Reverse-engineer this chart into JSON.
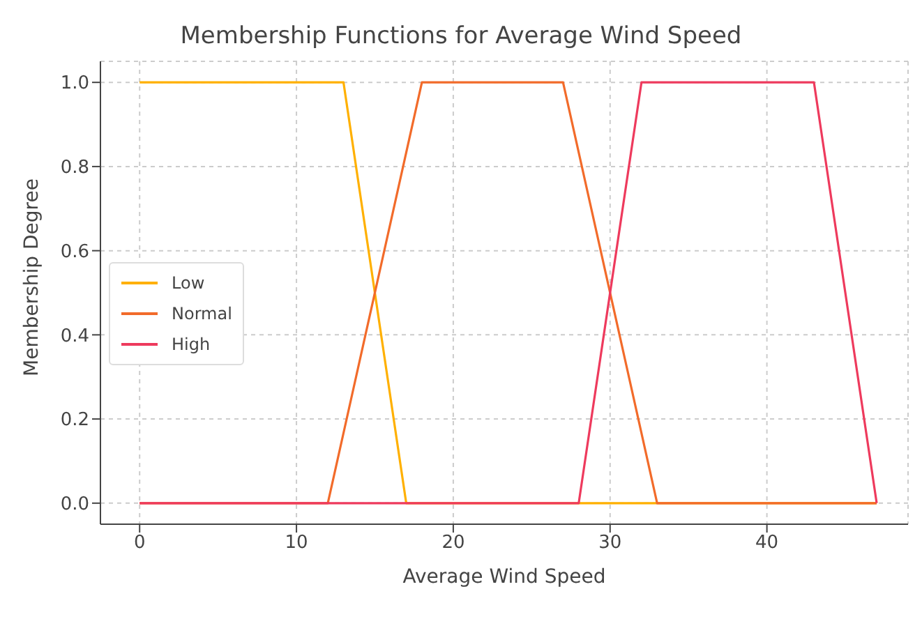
{
  "chart_data": {
    "type": "line",
    "title": "Membership Functions for Average Wind Speed",
    "xlabel": "Average Wind Speed",
    "ylabel": "Membership Degree",
    "series": [
      {
        "name": "Low",
        "color": "#ffb000",
        "x": [
          0,
          13,
          17,
          47
        ],
        "values": [
          1,
          1,
          0,
          0
        ]
      },
      {
        "name": "Normal",
        "color": "#f26b2a",
        "x": [
          0,
          12,
          18,
          27,
          33,
          47
        ],
        "values": [
          0,
          0,
          1,
          1,
          0,
          0
        ]
      },
      {
        "name": "High",
        "color": "#ee3a5d",
        "x": [
          0,
          28,
          32,
          43,
          47
        ],
        "values": [
          0,
          0,
          1,
          1,
          0
        ]
      }
    ],
    "xlim": [
      -2.5,
      49
    ],
    "xticks": [
      0,
      10,
      20,
      30,
      40
    ],
    "ylim": [
      -0.05,
      1.05
    ],
    "yticks": [
      {
        "value": 0,
        "label": "0.0"
      },
      {
        "value": 0.2,
        "label": "0.2"
      },
      {
        "value": 0.4,
        "label": "0.4"
      },
      {
        "value": 0.6,
        "label": "0.6"
      },
      {
        "value": 0.8,
        "label": "0.8"
      },
      {
        "value": 1,
        "label": "1.0"
      }
    ],
    "grid": true,
    "legend": "left",
    "marker": "none",
    "line_style": "solid"
  }
}
